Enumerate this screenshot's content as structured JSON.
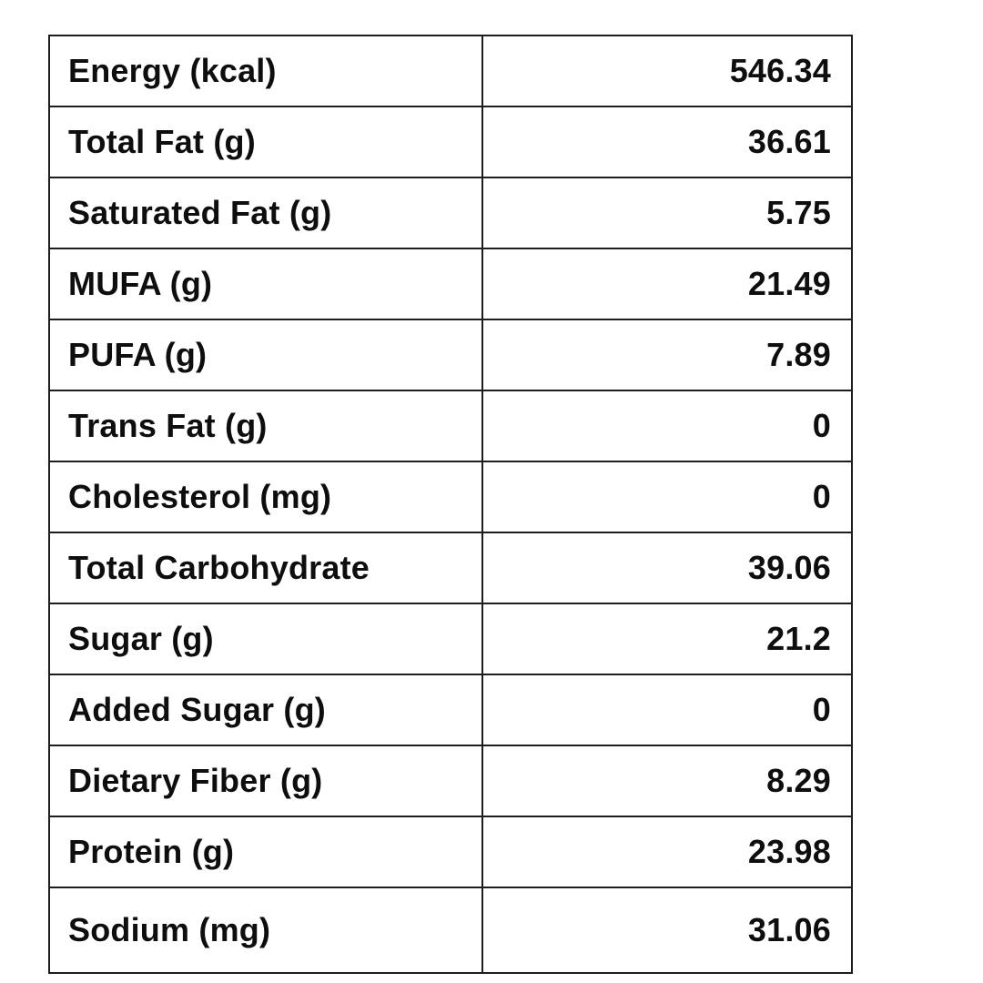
{
  "chart_data": {
    "type": "table",
    "title": "",
    "columns": [
      "label",
      "value"
    ],
    "legend": false,
    "grid": true,
    "rows": [
      {
        "label": "Energy (kcal)",
        "value": "546.34"
      },
      {
        "label": "Total Fat (g)",
        "value": "36.61"
      },
      {
        "label": "Saturated Fat (g)",
        "value": "5.75"
      },
      {
        "label": "MUFA (g)",
        "value": "21.49"
      },
      {
        "label": "PUFA (g)",
        "value": "7.89"
      },
      {
        "label": "Trans Fat (g)",
        "value": "0"
      },
      {
        "label": "Cholesterol (mg)",
        "value": "0"
      },
      {
        "label": "Total Carbohydrate",
        "value": "39.06"
      },
      {
        "label": "Sugar (g)",
        "value": "21.2"
      },
      {
        "label": "Added Sugar (g)",
        "value": "0"
      },
      {
        "label": "Dietary Fiber (g)",
        "value": "8.29"
      },
      {
        "label": "Protein (g)",
        "value": "23.98"
      },
      {
        "label": "Sodium (mg)",
        "value": "31.06"
      }
    ],
    "colors": {
      "border": "#1d1d1d",
      "text": "#0e0e0e",
      "background": "#ffffff"
    }
  }
}
